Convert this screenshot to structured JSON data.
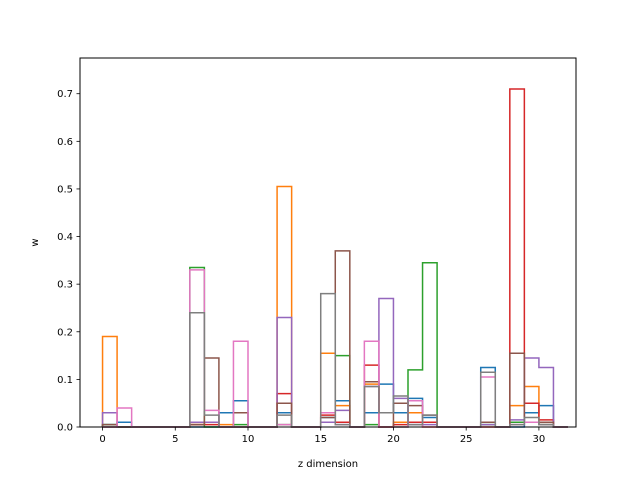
{
  "chart_data": {
    "type": "bar",
    "title": "",
    "xlabel": "z dimension",
    "ylabel": "w",
    "xlim": [
      -1.55,
      32.55
    ],
    "ylim": [
      0,
      0.775
    ],
    "xticks": [
      0,
      5,
      10,
      15,
      20,
      25,
      30
    ],
    "yticks": [
      0.0,
      0.1,
      0.2,
      0.3,
      0.4,
      0.5,
      0.6,
      0.7
    ],
    "bin_width": 1,
    "style": "step histogram (unfilled outlines)",
    "grid": false,
    "legend": "none",
    "series": [
      {
        "color": "#1f77b4",
        "values": [
          0.005,
          0.01,
          0,
          0,
          0,
          0,
          0,
          0,
          0.03,
          0.055,
          0,
          0,
          0.03,
          0,
          0,
          0.02,
          0.055,
          0,
          0.03,
          0.09,
          0.03,
          0.06,
          0.02,
          0,
          0,
          0,
          0.125,
          0,
          0,
          0.03,
          0.045,
          0
        ]
      },
      {
        "color": "#ff7f0e",
        "values": [
          0.19,
          0,
          0,
          0,
          0,
          0,
          0.005,
          0.01,
          0.005,
          0,
          0,
          0,
          0.505,
          0,
          0,
          0.155,
          0.045,
          0,
          0.09,
          0,
          0.01,
          0.03,
          0,
          0,
          0,
          0,
          0.01,
          0,
          0.045,
          0.085,
          0.005,
          0
        ]
      },
      {
        "color": "#2ca02c",
        "values": [
          0.005,
          0,
          0,
          0,
          0,
          0,
          0.335,
          0,
          0,
          0.005,
          0,
          0,
          0.005,
          0,
          0,
          0.01,
          0.15,
          0,
          0.005,
          0,
          0,
          0.12,
          0.345,
          0,
          0,
          0,
          0.005,
          0,
          0.01,
          0.01,
          0.005,
          0
        ]
      },
      {
        "color": "#d62728",
        "values": [
          0,
          0,
          0,
          0,
          0,
          0,
          0.005,
          0.005,
          0,
          0,
          0,
          0,
          0.07,
          0,
          0,
          0.025,
          0.01,
          0,
          0.13,
          0,
          0.005,
          0.01,
          0.01,
          0,
          0,
          0,
          0,
          0,
          0.71,
          0.05,
          0.015,
          0
        ]
      },
      {
        "color": "#9467bd",
        "values": [
          0.03,
          0,
          0,
          0,
          0,
          0,
          0.01,
          0.01,
          0,
          0,
          0,
          0,
          0.23,
          0,
          0,
          0.01,
          0.035,
          0,
          0.085,
          0.27,
          0.06,
          0.005,
          0.005,
          0,
          0,
          0,
          0.005,
          0,
          0.015,
          0.145,
          0.125,
          0
        ]
      },
      {
        "color": "#8c564b",
        "values": [
          0.005,
          0,
          0,
          0,
          0,
          0,
          0.005,
          0.145,
          0,
          0.03,
          0,
          0,
          0.05,
          0,
          0,
          0.02,
          0.37,
          0,
          0.095,
          0,
          0.05,
          0.045,
          0.025,
          0,
          0,
          0,
          0.01,
          0,
          0.155,
          0.01,
          0.01,
          0
        ]
      },
      {
        "color": "#e377c2",
        "values": [
          0,
          0.04,
          0,
          0,
          0,
          0,
          0.33,
          0.035,
          0,
          0.18,
          0,
          0,
          0.005,
          0,
          0,
          0.03,
          0.005,
          0,
          0.18,
          0,
          0,
          0.055,
          0,
          0,
          0,
          0,
          0.105,
          0,
          0.005,
          0.01,
          0.005,
          0
        ]
      },
      {
        "color": "#7f7f7f",
        "values": [
          0,
          0,
          0,
          0,
          0,
          0,
          0.24,
          0.025,
          0,
          0,
          0,
          0,
          0.025,
          0,
          0,
          0.28,
          0.005,
          0,
          0.085,
          0.03,
          0.065,
          0.005,
          0.025,
          0,
          0,
          0,
          0.115,
          0,
          0.005,
          0.02,
          0.005,
          0
        ]
      }
    ]
  }
}
